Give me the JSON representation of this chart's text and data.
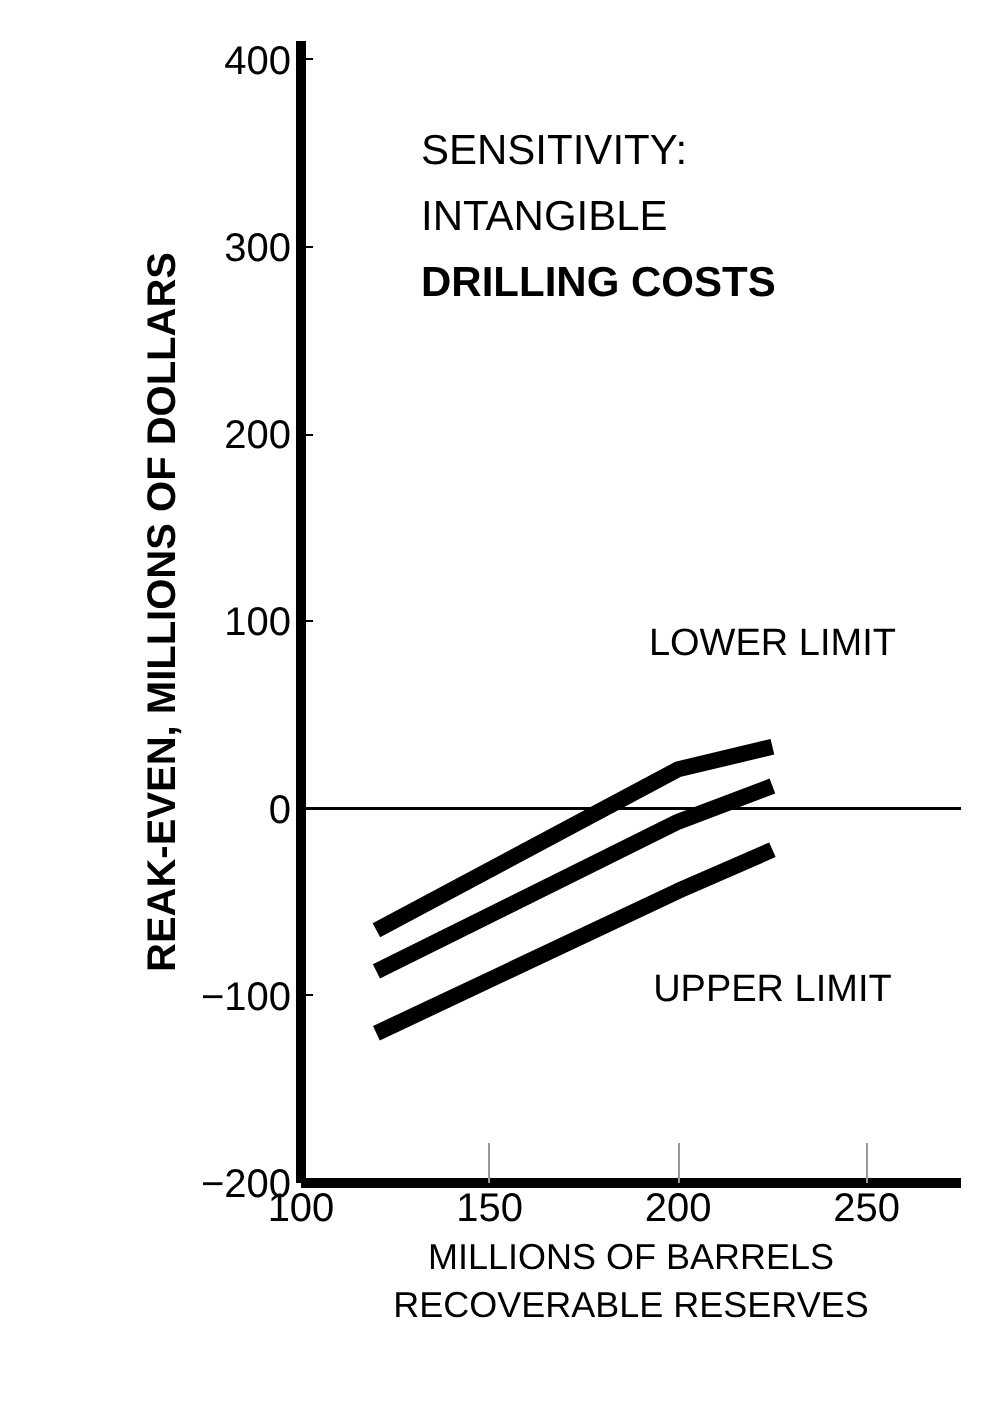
{
  "chart_data": {
    "type": "line",
    "title": "SENSITIVITY:\nINTANGIBLE\nDRILLING COSTS",
    "xlabel": "MILLIONS OF BARRELS\nRECOVERABLE RESERVES",
    "ylabel": "REAK-EVEN, MILLIONS OF DOLLARS",
    "x": [
      120,
      200,
      225
    ],
    "series": [
      {
        "name": "LOWER LIMIT",
        "color": "#000000",
        "values": [
          -65,
          21,
          33
        ]
      },
      {
        "color": "#000000",
        "values": [
          -87,
          -7,
          12
        ]
      },
      {
        "name": "UPPER LIMIT",
        "color": "#000000",
        "values": [
          -120,
          -44,
          -22
        ]
      }
    ],
    "xlim": [
      100,
      275
    ],
    "xticks": [
      100,
      150,
      200,
      250
    ],
    "ylim": [
      -200,
      410
    ],
    "yticks": [
      -200,
      -100,
      0,
      100,
      200,
      300,
      400
    ],
    "ref_lines": [
      {
        "axis": "y",
        "value": 0,
        "color": "#000000"
      }
    ],
    "grid": false,
    "marker": "none",
    "line_style": "solid"
  }
}
